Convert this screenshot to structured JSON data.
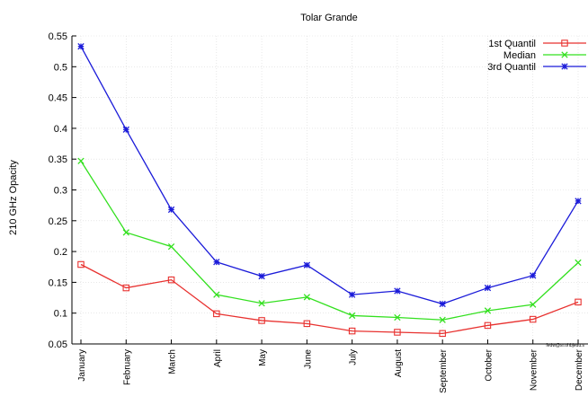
{
  "chart_data": {
    "type": "line",
    "title": "Tolar Grande",
    "ylabel": "210 GHz Opacity",
    "xlabel": "",
    "ylim": [
      0.05,
      0.55
    ],
    "yticks": [
      "0.05",
      "0.1",
      "0.15",
      "0.2",
      "0.25",
      "0.3",
      "0.35",
      "0.4",
      "0.45",
      "0.5",
      "0.55"
    ],
    "categories": [
      "January",
      "February",
      "March",
      "April",
      "May",
      "June",
      "July",
      "August",
      "September",
      "October",
      "November",
      "December"
    ],
    "grid": true,
    "legend_position": "top-right",
    "credit": "fedw@sr.ohbjedu.s",
    "series": [
      {
        "name": "1st Quantil",
        "color": "#e8312f",
        "marker": "square",
        "values": [
          0.179,
          0.141,
          0.154,
          0.099,
          0.088,
          0.083,
          0.071,
          0.069,
          0.067,
          0.08,
          0.09,
          0.118
        ]
      },
      {
        "name": "Median",
        "color": "#33e01f",
        "marker": "x",
        "values": [
          0.347,
          0.231,
          0.208,
          0.13,
          0.116,
          0.126,
          0.096,
          0.093,
          0.089,
          0.104,
          0.114,
          0.182
        ]
      },
      {
        "name": "3rd Quantil",
        "color": "#1b1bd9",
        "marker": "star",
        "values": [
          0.533,
          0.398,
          0.268,
          0.183,
          0.16,
          0.178,
          0.13,
          0.136,
          0.115,
          0.141,
          0.161,
          0.282
        ]
      }
    ]
  }
}
